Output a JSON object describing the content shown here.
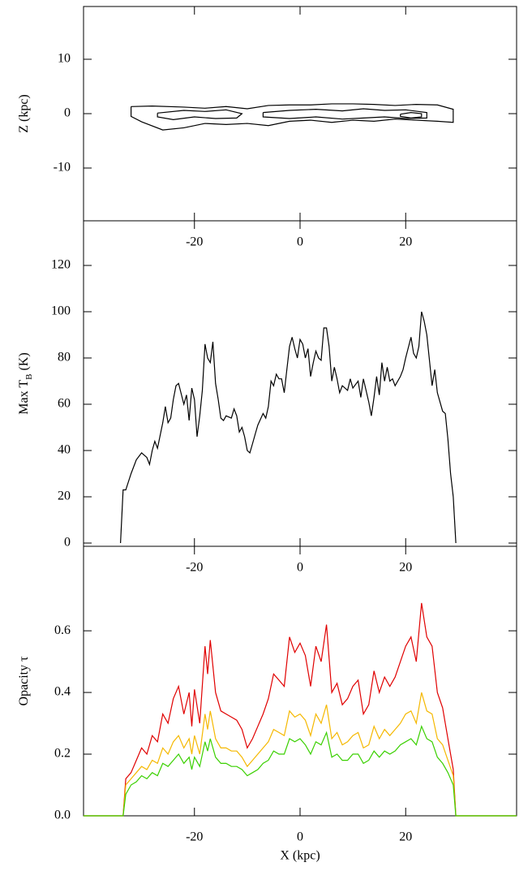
{
  "chart_data": [
    {
      "type": "contour",
      "ylabel": [
        {
          "text": "Z (kpc)"
        }
      ],
      "xlim": [
        -41,
        41
      ],
      "xticks": [
        -20,
        0,
        20
      ],
      "ylim": [
        -19.7,
        19.7
      ],
      "yticks": [
        -10,
        0,
        10
      ],
      "color": "#000000",
      "contours": [
        {
          "x": [
            -32,
            -28,
            -22,
            -18,
            -14,
            -10,
            -6,
            -2,
            2,
            6,
            10,
            14,
            18,
            22,
            26,
            29,
            29,
            26,
            22,
            18,
            14,
            10,
            6,
            2,
            -2,
            -6,
            -10,
            -14,
            -18,
            -22,
            -26,
            -30,
            -32,
            -32
          ],
          "y": [
            1.3,
            1.4,
            1.2,
            1.0,
            1.3,
            0.9,
            1.5,
            1.6,
            1.6,
            1.8,
            1.8,
            1.7,
            1.5,
            1.7,
            1.6,
            0.8,
            -1.6,
            -1.4,
            -1.2,
            -1.0,
            -1.4,
            -1.2,
            -1.6,
            -1.2,
            -1.4,
            -2.2,
            -1.8,
            -2.0,
            -1.8,
            -2.6,
            -3.0,
            -1.5,
            -0.5,
            1.3
          ]
        },
        {
          "x": [
            -27,
            -22,
            -18,
            -14,
            -11,
            -12,
            -16,
            -20,
            -24,
            -27,
            -27
          ],
          "y": [
            0.1,
            0.6,
            0.4,
            0.7,
            0.0,
            -0.8,
            -0.9,
            -0.6,
            -1.1,
            -0.6,
            0.1
          ]
        },
        {
          "x": [
            -7,
            -2,
            3,
            8,
            12,
            16,
            20,
            24,
            24,
            20,
            16,
            12,
            8,
            3,
            -2,
            -7,
            -7
          ],
          "y": [
            0.2,
            0.6,
            0.8,
            0.5,
            0.9,
            0.6,
            0.7,
            0.2,
            -0.8,
            -0.9,
            -0.6,
            -0.8,
            -1.0,
            -0.6,
            -0.9,
            -0.6,
            0.2
          ]
        },
        {
          "x": [
            19,
            21,
            23,
            23,
            21,
            19,
            19
          ],
          "y": [
            -0.1,
            0.2,
            0.0,
            -0.6,
            -0.8,
            -0.5,
            -0.1
          ]
        }
      ]
    },
    {
      "type": "line",
      "ylabel": [
        {
          "text": "Max T"
        },
        {
          "text": "B",
          "sub": true
        },
        {
          "text": " (K)"
        }
      ],
      "xlim": [
        -41,
        41
      ],
      "xticks": [
        -20,
        0,
        20
      ],
      "ylim": [
        -1.4,
        139.3
      ],
      "yticks": [
        0,
        20,
        40,
        60,
        80,
        100,
        120
      ],
      "x": [
        -34,
        -33.5,
        -33,
        -32,
        -31,
        -30,
        -29,
        -28.5,
        -28,
        -27.5,
        -27,
        -26,
        -25.5,
        -25,
        -24.5,
        -24,
        -23.5,
        -23,
        -22,
        -21.5,
        -21,
        -20.5,
        -20,
        -19.5,
        -19,
        -18.5,
        -18,
        -17.5,
        -17,
        -16.5,
        -16,
        -15.5,
        -15,
        -14.5,
        -14,
        -13,
        -12.5,
        -12,
        -11.5,
        -11,
        -10.5,
        -10,
        -9.5,
        -9,
        -8.5,
        -8,
        -7,
        -6.5,
        -6,
        -5.5,
        -5,
        -4.5,
        -4,
        -3.5,
        -3,
        -2.5,
        -2,
        -1.5,
        -1,
        -0.5,
        0,
        0.5,
        1,
        1.5,
        2,
        2.5,
        3,
        3.5,
        4,
        4.5,
        5,
        5.5,
        6,
        6.5,
        7,
        7.5,
        8,
        9,
        9.5,
        10,
        11,
        11.5,
        12,
        13,
        13.5,
        14,
        14.5,
        15,
        15.5,
        16,
        16.5,
        17,
        17.5,
        18,
        19,
        19.5,
        20,
        21,
        21.5,
        22,
        22.5,
        23,
        23.5,
        24,
        25,
        25.5,
        26,
        27,
        27.5,
        28,
        28.5,
        29,
        29.5
      ],
      "series": [
        {
          "name": "Max TB",
          "color": "#000000",
          "values": [
            0,
            23,
            23,
            30,
            36,
            39,
            37,
            34,
            40,
            44,
            41,
            52,
            59,
            52,
            54,
            62,
            68,
            69,
            60,
            64,
            53,
            67,
            62,
            46,
            55,
            66,
            86,
            80,
            78,
            87,
            69,
            62,
            54,
            53,
            55,
            54,
            58,
            55,
            48,
            50,
            46,
            40,
            39,
            43,
            47,
            51,
            56,
            54,
            59,
            70,
            68,
            73,
            71,
            71,
            65,
            75,
            85,
            89,
            84,
            80,
            88,
            86,
            80,
            84,
            72,
            78,
            83,
            80,
            79,
            93,
            93,
            85,
            70,
            76,
            71,
            65,
            68,
            66,
            71,
            67,
            70,
            63,
            71,
            61,
            55,
            63,
            72,
            64,
            78,
            70,
            76,
            70,
            71,
            68,
            72,
            75,
            80,
            89,
            82,
            80,
            85,
            100,
            96,
            90,
            68,
            75,
            65,
            57,
            56,
            45,
            30,
            20,
            0
          ]
        }
      ]
    },
    {
      "type": "line",
      "ylabel": [
        {
          "text": "Opacity τ"
        }
      ],
      "xlabel": "X (kpc)",
      "xlim": [
        -41,
        41
      ],
      "xticks": [
        -20,
        0,
        20
      ],
      "ylim": [
        0,
        0.874
      ],
      "yticks": [
        {
          "value": 0,
          "label": "0.0"
        },
        0.2,
        0.4,
        0.6
      ],
      "x": [
        -41,
        -33.5,
        -33,
        -32,
        -31,
        -30,
        -29,
        -28,
        -27,
        -26,
        -25,
        -24,
        -23,
        -22,
        -21,
        -20.5,
        -20,
        -19,
        -18,
        -17.5,
        -17,
        -16,
        -15,
        -14,
        -13,
        -12,
        -11,
        -10,
        -9,
        -8,
        -7,
        -6,
        -5,
        -4,
        -3,
        -2,
        -1,
        0,
        1,
        2,
        3,
        4,
        5,
        6,
        7,
        8,
        9,
        10,
        11,
        12,
        13,
        14,
        15,
        16,
        17,
        18,
        19,
        20,
        21,
        22,
        23,
        24,
        25,
        26,
        27,
        28,
        29,
        29.5,
        41
      ],
      "series": [
        {
          "name": "red",
          "color": "#e00000",
          "values": [
            0,
            0,
            0.12,
            0.14,
            0.18,
            0.22,
            0.2,
            0.26,
            0.24,
            0.33,
            0.3,
            0.38,
            0.42,
            0.33,
            0.4,
            0.29,
            0.41,
            0.3,
            0.55,
            0.46,
            0.57,
            0.4,
            0.34,
            0.33,
            0.32,
            0.31,
            0.28,
            0.22,
            0.25,
            0.29,
            0.33,
            0.38,
            0.46,
            0.44,
            0.42,
            0.58,
            0.53,
            0.56,
            0.52,
            0.42,
            0.55,
            0.5,
            0.62,
            0.4,
            0.43,
            0.36,
            0.38,
            0.42,
            0.44,
            0.33,
            0.36,
            0.47,
            0.4,
            0.45,
            0.42,
            0.45,
            0.5,
            0.55,
            0.58,
            0.5,
            0.69,
            0.58,
            0.55,
            0.4,
            0.35,
            0.25,
            0.15,
            0,
            0
          ]
        },
        {
          "name": "orange",
          "color": "#f5b800",
          "values": [
            0,
            0,
            0.1,
            0.12,
            0.14,
            0.16,
            0.15,
            0.18,
            0.17,
            0.22,
            0.2,
            0.24,
            0.26,
            0.22,
            0.25,
            0.2,
            0.26,
            0.2,
            0.33,
            0.28,
            0.34,
            0.25,
            0.22,
            0.22,
            0.21,
            0.21,
            0.19,
            0.16,
            0.18,
            0.2,
            0.22,
            0.24,
            0.28,
            0.27,
            0.26,
            0.34,
            0.32,
            0.33,
            0.31,
            0.26,
            0.33,
            0.3,
            0.36,
            0.25,
            0.27,
            0.23,
            0.24,
            0.26,
            0.27,
            0.22,
            0.23,
            0.29,
            0.25,
            0.28,
            0.26,
            0.28,
            0.3,
            0.33,
            0.34,
            0.3,
            0.4,
            0.34,
            0.33,
            0.25,
            0.23,
            0.18,
            0.13,
            0,
            0
          ]
        },
        {
          "name": "green",
          "color": "#3ad000",
          "values": [
            0,
            0,
            0.07,
            0.1,
            0.11,
            0.13,
            0.12,
            0.14,
            0.13,
            0.17,
            0.16,
            0.18,
            0.2,
            0.17,
            0.19,
            0.15,
            0.19,
            0.16,
            0.24,
            0.21,
            0.25,
            0.19,
            0.17,
            0.17,
            0.16,
            0.16,
            0.15,
            0.13,
            0.14,
            0.15,
            0.17,
            0.18,
            0.21,
            0.2,
            0.2,
            0.25,
            0.24,
            0.25,
            0.23,
            0.2,
            0.24,
            0.23,
            0.27,
            0.19,
            0.2,
            0.18,
            0.18,
            0.2,
            0.2,
            0.17,
            0.18,
            0.21,
            0.19,
            0.21,
            0.2,
            0.21,
            0.23,
            0.24,
            0.25,
            0.23,
            0.29,
            0.25,
            0.24,
            0.19,
            0.17,
            0.14,
            0.1,
            0,
            0
          ]
        }
      ]
    }
  ]
}
